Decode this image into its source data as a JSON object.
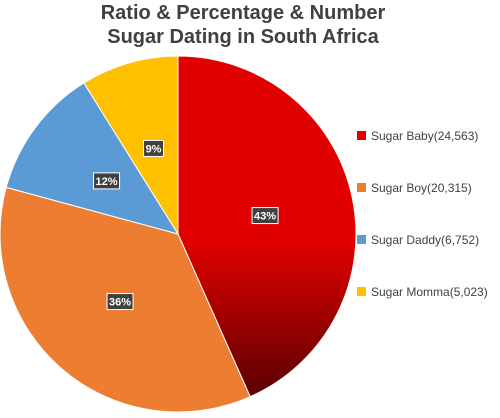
{
  "title": {
    "line1": "Ratio & Percentage & Number",
    "line2": "Sugar Dating in South Africa"
  },
  "chart_data": {
    "type": "pie",
    "title": "Ratio & Percentage & Number Sugar Dating in South Africa",
    "legend_position": "right",
    "slices": [
      {
        "name": "Sugar Baby",
        "value": 24563,
        "legend": "Sugar Baby(24,563)",
        "label": "43%",
        "color": "#e00000",
        "dark": "#5a0000"
      },
      {
        "name": "Sugar Boy",
        "value": 20315,
        "legend": "Sugar Boy(20,315)",
        "label": "36%",
        "color": "#ed7d31",
        "dark": "#ed7d31"
      },
      {
        "name": "Sugar Daddy",
        "value": 6752,
        "legend": "Sugar Daddy(6,752)",
        "label": "12%",
        "color": "#5b9bd5",
        "dark": "#5b9bd5"
      },
      {
        "name": "Sugar Momma",
        "value": 5023,
        "legend": "Sugar Momma(5,023)",
        "label": "9%",
        "color": "#ffc000",
        "dark": "#ffc000"
      }
    ]
  }
}
